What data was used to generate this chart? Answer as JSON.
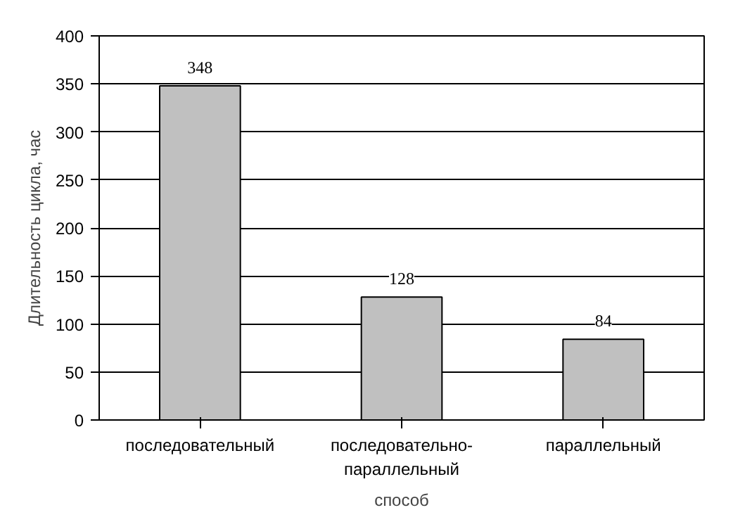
{
  "chart_data": {
    "type": "bar",
    "xlabel": "способ",
    "ylabel": "Длительность цикла, час",
    "categories": [
      "последовательный",
      "последовательно-\nпараллельный",
      "параллельный"
    ],
    "values": [
      348,
      128,
      84
    ],
    "color": "#c0c0c0",
    "ylim": [
      0,
      400
    ],
    "yticks": [
      0,
      50,
      100,
      150,
      200,
      250,
      300,
      350,
      400
    ],
    "grid": "y",
    "data_labels": true
  }
}
